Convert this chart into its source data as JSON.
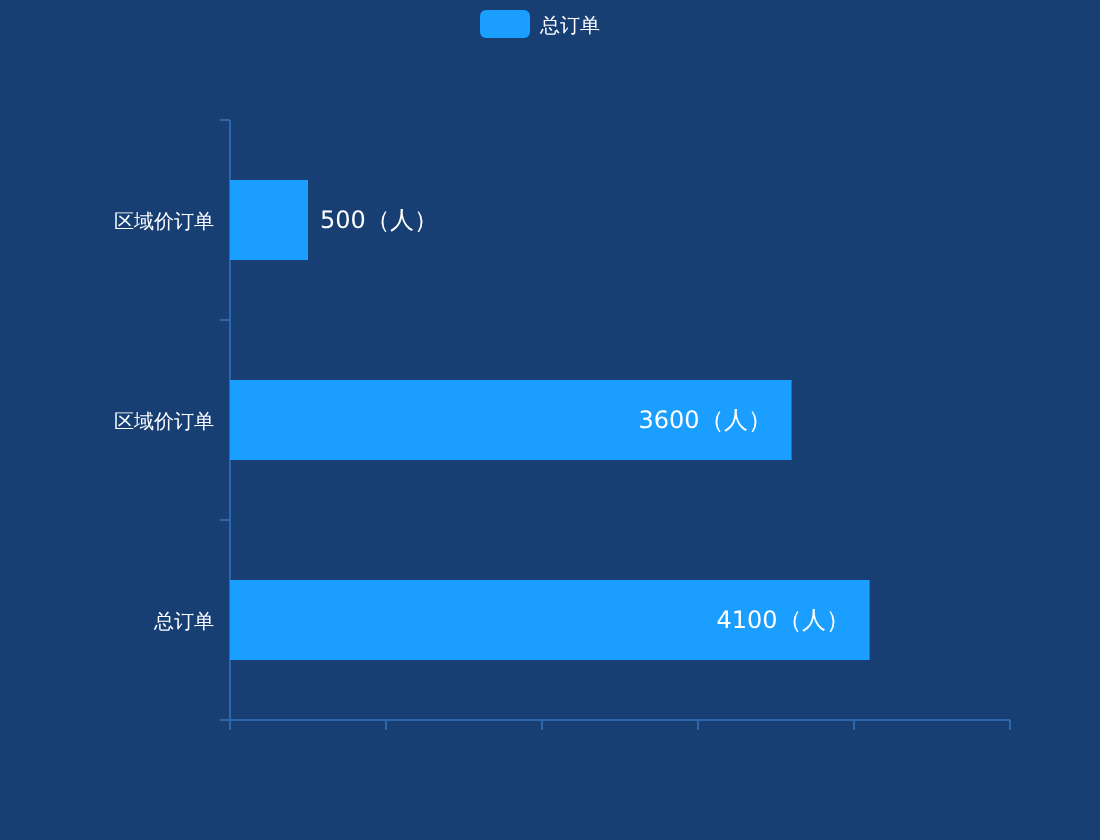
{
  "chart_data": {
    "type": "bar",
    "orientation": "horizontal",
    "categories": [
      "区域价订单",
      "区域价订单",
      "总订单"
    ],
    "series": [
      {
        "name": "总订单",
        "color": "#1a9eff",
        "values": [
          500,
          3600,
          4100
        ],
        "value_labels": [
          "500（人）",
          "3600（人）",
          "4100（人）"
        ]
      }
    ],
    "xlim": [
      0,
      5000
    ],
    "xticks": [
      {
        "value": 0,
        "label": null
      },
      {
        "value": 1000,
        "label": null
      },
      {
        "value": 2000,
        "label": null
      },
      {
        "value": 3000,
        "label": null
      },
      {
        "value": 4000,
        "label": null
      },
      {
        "value": 5000,
        "label": null
      }
    ],
    "tick_labels": "y",
    "legend": "top"
  }
}
